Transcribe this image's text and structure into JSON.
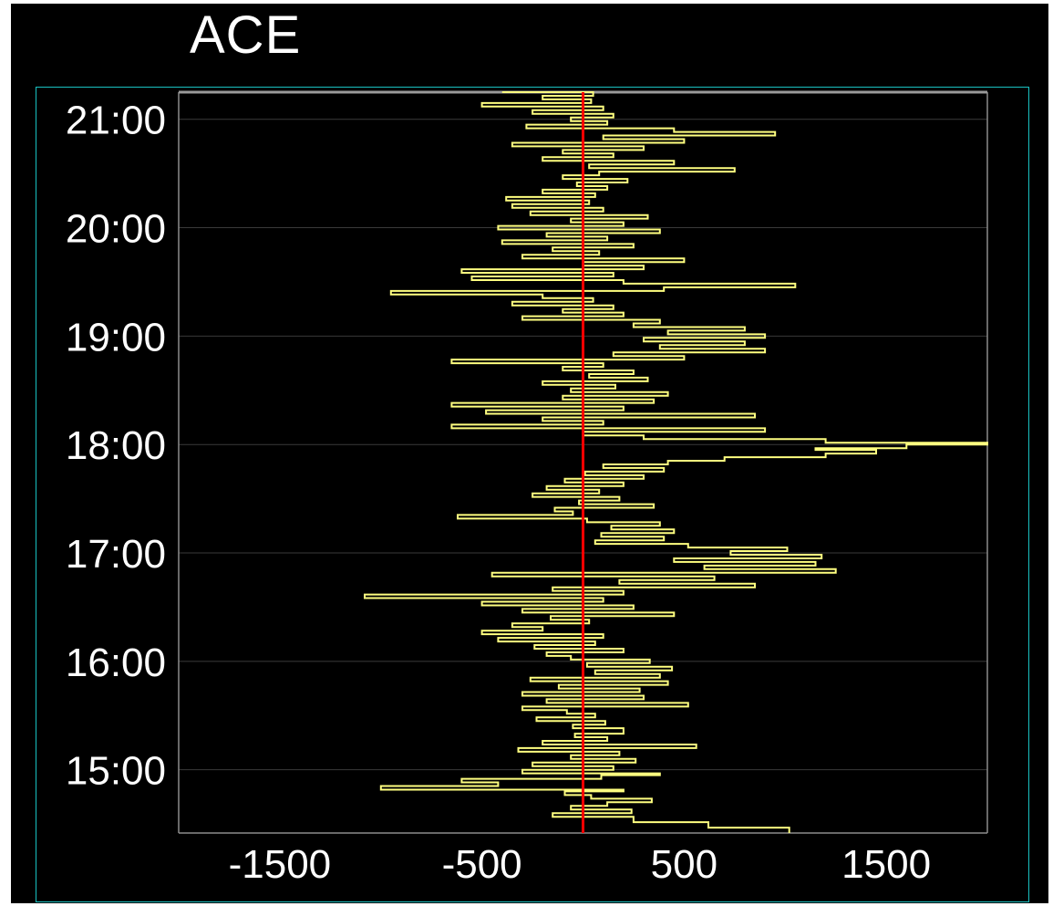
{
  "chart_data": {
    "type": "line",
    "title": "ACE",
    "orientation": "vertical-time",
    "xlabel": "",
    "ylabel": "",
    "xlim": [
      -2000,
      2000
    ],
    "ylim": [
      "14:25",
      "21:15"
    ],
    "x_ticks": [
      "-1500",
      "-500",
      "500",
      "1500"
    ],
    "y_ticks": [
      "15:00",
      "16:00",
      "17:00",
      "18:00",
      "19:00",
      "20:00",
      "21:00"
    ],
    "reference_line": {
      "x": 0,
      "color": "#ff0000"
    },
    "grid": true,
    "series": [
      {
        "color": "#ffff80",
        "points": [
          {
            "t": "14:25",
            "v": 1020
          },
          {
            "t": "14:28",
            "v": 620
          },
          {
            "t": "14:31",
            "v": 250
          },
          {
            "t": "14:34",
            "v": -150
          },
          {
            "t": "14:36",
            "v": 240
          },
          {
            "t": "14:38",
            "v": -60
          },
          {
            "t": "14:40",
            "v": 120
          },
          {
            "t": "14:42",
            "v": 340
          },
          {
            "t": "14:44",
            "v": 40
          },
          {
            "t": "14:46",
            "v": -90
          },
          {
            "t": "14:48",
            "v": 200
          },
          {
            "t": "14:49",
            "v": -1000
          },
          {
            "t": "14:51",
            "v": -420
          },
          {
            "t": "14:53",
            "v": -600
          },
          {
            "t": "14:55",
            "v": 90
          },
          {
            "t": "14:57",
            "v": 380
          },
          {
            "t": "14:58",
            "v": -300
          },
          {
            "t": "15:00",
            "v": 150
          },
          {
            "t": "15:02",
            "v": -250
          },
          {
            "t": "15:04",
            "v": 260
          },
          {
            "t": "15:06",
            "v": -60
          },
          {
            "t": "15:08",
            "v": 180
          },
          {
            "t": "15:10",
            "v": -320
          },
          {
            "t": "15:12",
            "v": 560
          },
          {
            "t": "15:14",
            "v": -200
          },
          {
            "t": "15:16",
            "v": 120
          },
          {
            "t": "15:18",
            "v": -40
          },
          {
            "t": "15:20",
            "v": 200
          },
          {
            "t": "15:23",
            "v": -50
          },
          {
            "t": "15:25",
            "v": 110
          },
          {
            "t": "15:27",
            "v": -230
          },
          {
            "t": "15:29",
            "v": 60
          },
          {
            "t": "15:31",
            "v": -80
          },
          {
            "t": "15:33",
            "v": -300
          },
          {
            "t": "15:35",
            "v": 520
          },
          {
            "t": "15:37",
            "v": -180
          },
          {
            "t": "15:39",
            "v": 300
          },
          {
            "t": "15:41",
            "v": -300
          },
          {
            "t": "15:43",
            "v": 280
          },
          {
            "t": "15:45",
            "v": -120
          },
          {
            "t": "15:47",
            "v": 420
          },
          {
            "t": "15:49",
            "v": -260
          },
          {
            "t": "15:51",
            "v": 380
          },
          {
            "t": "15:53",
            "v": 60
          },
          {
            "t": "15:55",
            "v": 440
          },
          {
            "t": "15:57",
            "v": 20
          },
          {
            "t": "15:59",
            "v": 330
          },
          {
            "t": "16:01",
            "v": -60
          },
          {
            "t": "16:03",
            "v": -180
          },
          {
            "t": "16:05",
            "v": 200
          },
          {
            "t": "16:07",
            "v": -240
          },
          {
            "t": "16:09",
            "v": 60
          },
          {
            "t": "16:11",
            "v": -420
          },
          {
            "t": "16:13",
            "v": 100
          },
          {
            "t": "16:15",
            "v": -500
          },
          {
            "t": "16:17",
            "v": -200
          },
          {
            "t": "16:19",
            "v": -350
          },
          {
            "t": "16:21",
            "v": 30
          },
          {
            "t": "16:23",
            "v": -160
          },
          {
            "t": "16:25",
            "v": 450
          },
          {
            "t": "16:27",
            "v": -300
          },
          {
            "t": "16:29",
            "v": 250
          },
          {
            "t": "16:31",
            "v": -500
          },
          {
            "t": "16:33",
            "v": 100
          },
          {
            "t": "16:35",
            "v": -1080
          },
          {
            "t": "16:37",
            "v": 200
          },
          {
            "t": "16:39",
            "v": -150
          },
          {
            "t": "16:41",
            "v": 850
          },
          {
            "t": "16:43",
            "v": 180
          },
          {
            "t": "16:45",
            "v": 650
          },
          {
            "t": "16:47",
            "v": -450
          },
          {
            "t": "16:49",
            "v": 1250
          },
          {
            "t": "16:51",
            "v": 600
          },
          {
            "t": "16:53",
            "v": 1150
          },
          {
            "t": "16:55",
            "v": 450
          },
          {
            "t": "16:57",
            "v": 1180
          },
          {
            "t": "16:59",
            "v": 730
          },
          {
            "t": "17:01",
            "v": 1010
          },
          {
            "t": "17:03",
            "v": 520
          },
          {
            "t": "17:05",
            "v": 60
          },
          {
            "t": "17:07",
            "v": 400
          },
          {
            "t": "17:09",
            "v": 90
          },
          {
            "t": "17:11",
            "v": 450
          },
          {
            "t": "17:13",
            "v": 140
          },
          {
            "t": "17:15",
            "v": 380
          },
          {
            "t": "17:17",
            "v": 20
          },
          {
            "t": "17:19",
            "v": -620
          },
          {
            "t": "17:21",
            "v": -50
          },
          {
            "t": "17:23",
            "v": -140
          },
          {
            "t": "17:25",
            "v": 350
          },
          {
            "t": "17:27",
            "v": -20
          },
          {
            "t": "17:29",
            "v": 180
          },
          {
            "t": "17:31",
            "v": -250
          },
          {
            "t": "17:33",
            "v": 80
          },
          {
            "t": "17:35",
            "v": -180
          },
          {
            "t": "17:37",
            "v": 200
          },
          {
            "t": "17:39",
            "v": -90
          },
          {
            "t": "17:41",
            "v": 300
          },
          {
            "t": "17:43",
            "v": 10
          },
          {
            "t": "17:45",
            "v": 400
          },
          {
            "t": "17:47",
            "v": 100
          },
          {
            "t": "17:49",
            "v": 420
          },
          {
            "t": "17:51",
            "v": 700
          },
          {
            "t": "17:53",
            "v": 1200
          },
          {
            "t": "17:55",
            "v": 1450
          },
          {
            "t": "17:57",
            "v": 1150
          },
          {
            "t": "17:58",
            "v": 1600
          },
          {
            "t": "18:00",
            "v": 2000
          },
          {
            "t": "18:01",
            "v": 1200
          },
          {
            "t": "18:03",
            "v": 300
          },
          {
            "t": "18:05",
            "v": 0
          },
          {
            "t": "18:07",
            "v": 900
          },
          {
            "t": "18:09",
            "v": -650
          },
          {
            "t": "18:11",
            "v": 100
          },
          {
            "t": "18:13",
            "v": -200
          },
          {
            "t": "18:15",
            "v": 850
          },
          {
            "t": "18:17",
            "v": -480
          },
          {
            "t": "18:19",
            "v": 200
          },
          {
            "t": "18:21",
            "v": -650
          },
          {
            "t": "18:23",
            "v": 350
          },
          {
            "t": "18:25",
            "v": -100
          },
          {
            "t": "18:27",
            "v": 420
          },
          {
            "t": "18:29",
            "v": -60
          },
          {
            "t": "18:31",
            "v": 160
          },
          {
            "t": "18:33",
            "v": -200
          },
          {
            "t": "18:35",
            "v": 320
          },
          {
            "t": "18:37",
            "v": 30
          },
          {
            "t": "18:39",
            "v": 250
          },
          {
            "t": "18:41",
            "v": -100
          },
          {
            "t": "18:43",
            "v": 100
          },
          {
            "t": "18:45",
            "v": -650
          },
          {
            "t": "18:47",
            "v": 500
          },
          {
            "t": "18:49",
            "v": 150
          },
          {
            "t": "18:51",
            "v": 900
          },
          {
            "t": "18:53",
            "v": 380
          },
          {
            "t": "18:55",
            "v": 800
          },
          {
            "t": "18:57",
            "v": 300
          },
          {
            "t": "18:59",
            "v": 900
          },
          {
            "t": "19:01",
            "v": 420
          },
          {
            "t": "19:03",
            "v": 800
          },
          {
            "t": "19:05",
            "v": 250
          },
          {
            "t": "19:07",
            "v": 380
          },
          {
            "t": "19:09",
            "v": -300
          },
          {
            "t": "19:11",
            "v": 200
          },
          {
            "t": "19:13",
            "v": -100
          },
          {
            "t": "19:15",
            "v": 150
          },
          {
            "t": "19:17",
            "v": -350
          },
          {
            "t": "19:19",
            "v": 50
          },
          {
            "t": "19:21",
            "v": -200
          },
          {
            "t": "19:23",
            "v": -950
          },
          {
            "t": "19:25",
            "v": 400
          },
          {
            "t": "19:27",
            "v": 1050
          },
          {
            "t": "19:29",
            "v": 200
          },
          {
            "t": "19:31",
            "v": -550
          },
          {
            "t": "19:33",
            "v": 150
          },
          {
            "t": "19:35",
            "v": -600
          },
          {
            "t": "19:37",
            "v": 300
          },
          {
            "t": "19:39",
            "v": 0
          },
          {
            "t": "19:41",
            "v": 500
          },
          {
            "t": "19:43",
            "v": -300
          },
          {
            "t": "19:45",
            "v": 80
          },
          {
            "t": "19:47",
            "v": -150
          },
          {
            "t": "19:49",
            "v": 250
          },
          {
            "t": "19:51",
            "v": -400
          },
          {
            "t": "19:53",
            "v": 120
          },
          {
            "t": "19:55",
            "v": -180
          },
          {
            "t": "19:57",
            "v": 380
          },
          {
            "t": "19:59",
            "v": -420
          },
          {
            "t": "20:01",
            "v": 200
          },
          {
            "t": "20:03",
            "v": -60
          },
          {
            "t": "20:05",
            "v": 320
          },
          {
            "t": "20:07",
            "v": -260
          },
          {
            "t": "20:09",
            "v": 100
          },
          {
            "t": "20:11",
            "v": -350
          },
          {
            "t": "20:13",
            "v": 30
          },
          {
            "t": "20:15",
            "v": -380
          },
          {
            "t": "20:17",
            "v": 60
          },
          {
            "t": "20:19",
            "v": -200
          },
          {
            "t": "20:21",
            "v": 120
          },
          {
            "t": "20:23",
            "v": -30
          },
          {
            "t": "20:25",
            "v": 220
          },
          {
            "t": "20:27",
            "v": -100
          },
          {
            "t": "20:29",
            "v": 80
          },
          {
            "t": "20:31",
            "v": 750
          },
          {
            "t": "20:33",
            "v": 30
          },
          {
            "t": "20:35",
            "v": 450
          },
          {
            "t": "20:37",
            "v": -200
          },
          {
            "t": "20:39",
            "v": 150
          },
          {
            "t": "20:41",
            "v": -100
          },
          {
            "t": "20:43",
            "v": 300
          },
          {
            "t": "20:45",
            "v": -350
          },
          {
            "t": "20:47",
            "v": 500
          },
          {
            "t": "20:49",
            "v": 100
          },
          {
            "t": "20:51",
            "v": 950
          },
          {
            "t": "20:53",
            "v": 450
          },
          {
            "t": "20:55",
            "v": -280
          },
          {
            "t": "20:57",
            "v": 120
          },
          {
            "t": "20:59",
            "v": -60
          },
          {
            "t": "21:01",
            "v": 150
          },
          {
            "t": "21:03",
            "v": -250
          },
          {
            "t": "21:05",
            "v": 100
          },
          {
            "t": "21:07",
            "v": -500
          },
          {
            "t": "21:09",
            "v": 40
          },
          {
            "t": "21:11",
            "v": -200
          },
          {
            "t": "21:13",
            "v": 50
          },
          {
            "t": "21:15",
            "v": -400
          }
        ]
      }
    ]
  }
}
